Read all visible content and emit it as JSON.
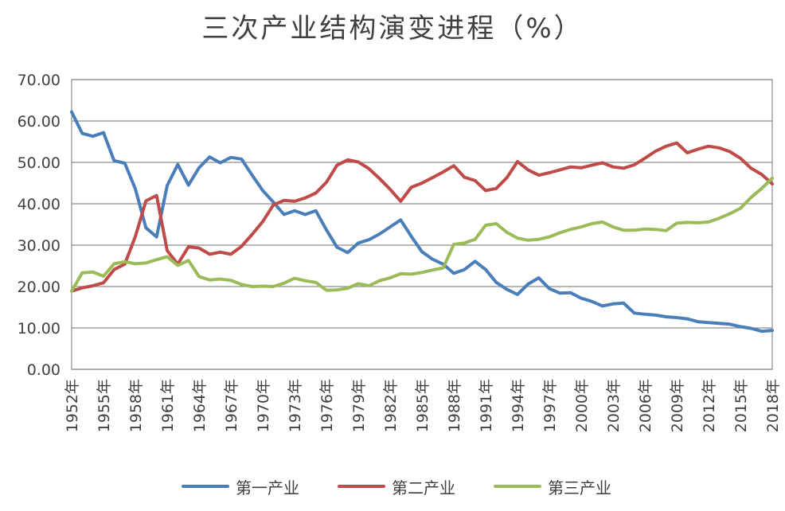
{
  "chart_data": {
    "type": "line",
    "title": "三次产业结构演变进程（%）",
    "xlabel": "",
    "ylabel": "",
    "ylim": [
      0,
      70
    ],
    "yticks": [
      "0.00",
      "10.00",
      "20.00",
      "30.00",
      "40.00",
      "50.00",
      "60.00",
      "70.00"
    ],
    "xtick_labels": [
      "1952年",
      "1955年",
      "1958年",
      "1961年",
      "1964年",
      "1967年",
      "1970年",
      "1973年",
      "1976年",
      "1979年",
      "1982年",
      "1985年",
      "1988年",
      "1991年",
      "1994年",
      "1997年",
      "2000年",
      "2003年",
      "2006年",
      "2009年",
      "2012年",
      "2015年",
      "2018年"
    ],
    "grid": true,
    "legend_position": "bottom",
    "x": [
      1952,
      1953,
      1954,
      1955,
      1956,
      1957,
      1958,
      1959,
      1960,
      1961,
      1962,
      1963,
      1964,
      1965,
      1966,
      1967,
      1968,
      1969,
      1970,
      1971,
      1972,
      1973,
      1974,
      1975,
      1976,
      1977,
      1978,
      1979,
      1980,
      1981,
      1982,
      1983,
      1984,
      1985,
      1986,
      1987,
      1988,
      1989,
      1990,
      1991,
      1992,
      1993,
      1994,
      1995,
      1996,
      1997,
      1998,
      1999,
      2000,
      2001,
      2002,
      2003,
      2004,
      2005,
      2006,
      2007,
      2008,
      2009,
      2010,
      2011,
      2012,
      2013,
      2014,
      2015,
      2016,
      2017,
      2018
    ],
    "series": [
      {
        "name": "第一产业",
        "color": "#4a7ebb",
        "values": [
          62.2,
          57.0,
          56.3,
          57.2,
          50.4,
          49.8,
          43.6,
          34.2,
          32.0,
          44.4,
          49.5,
          44.5,
          48.7,
          51.3,
          49.9,
          51.2,
          50.8,
          46.9,
          43.2,
          40.4,
          37.4,
          38.3,
          37.4,
          38.3,
          33.7,
          29.5,
          28.2,
          30.5,
          31.3,
          32.7,
          34.4,
          36.1,
          32.1,
          28.4,
          26.6,
          25.4,
          23.2,
          24.1,
          26.1,
          24.1,
          21.0,
          19.3,
          18.1,
          20.6,
          22.1,
          19.5,
          18.4,
          18.5,
          17.2,
          16.4,
          15.3,
          15.8,
          16.0,
          13.6,
          13.3,
          13.1,
          12.7,
          12.5,
          12.2,
          11.5,
          11.3,
          11.1,
          10.9,
          10.3,
          9.9,
          9.2,
          9.4
        ]
      },
      {
        "name": "第二产业",
        "color": "#be4b48",
        "values": [
          18.9,
          19.7,
          20.2,
          20.9,
          24.1,
          25.4,
          32.1,
          40.7,
          42.0,
          28.7,
          25.4,
          29.6,
          29.3,
          27.8,
          28.3,
          27.8,
          29.7,
          32.6,
          35.7,
          39.7,
          40.8,
          40.6,
          41.4,
          42.6,
          45.2,
          49.3,
          50.6,
          50.1,
          48.5,
          46.1,
          43.5,
          40.6,
          44.0,
          45.0,
          46.3,
          47.7,
          49.2,
          46.4,
          45.6,
          43.2,
          43.7,
          46.3,
          50.2,
          48.2,
          46.9,
          47.5,
          48.2,
          48.9,
          48.7,
          49.3,
          49.9,
          48.9,
          48.6,
          49.4,
          51.0,
          52.7,
          53.9,
          54.7,
          52.3,
          53.2,
          53.9,
          53.5,
          52.6,
          51.0,
          48.6,
          47.1,
          44.8
        ]
      },
      {
        "name": "第三产业",
        "color": "#9bbb59",
        "values": [
          18.9,
          23.3,
          23.5,
          22.5,
          25.5,
          26.0,
          25.5,
          25.7,
          26.5,
          27.2,
          25.1,
          26.3,
          22.4,
          21.6,
          21.8,
          21.5,
          20.5,
          20.0,
          20.1,
          20.0,
          20.8,
          22.0,
          21.4,
          21.0,
          19.1,
          19.2,
          19.6,
          20.7,
          20.2,
          21.4,
          22.1,
          23.1,
          23.0,
          23.4,
          24.0,
          24.5,
          30.2,
          30.5,
          31.4,
          34.8,
          35.2,
          33.1,
          31.7,
          31.2,
          31.4,
          32.0,
          33.0,
          33.8,
          34.4,
          35.2,
          35.6,
          34.4,
          33.6,
          33.6,
          33.9,
          33.8,
          33.5,
          35.3,
          35.5,
          35.4,
          35.6,
          36.5,
          37.6,
          38.9,
          41.5,
          43.7,
          46.2
        ]
      }
    ]
  }
}
